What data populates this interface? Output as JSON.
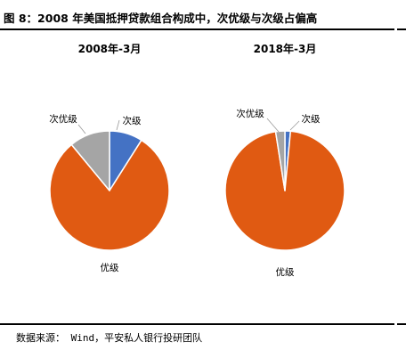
{
  "figure": {
    "title": "图 8：2008 年美国抵押贷款组合构成中，次优级与次级占偏高",
    "source": "数据来源： Wind，平安私人银行投研团队"
  },
  "colors": {
    "次级": "#4472C4",
    "次优级": "#A5A5A5",
    "优级": "#E05A12"
  },
  "chart_data": [
    {
      "type": "pie",
      "title": "2008年-3月",
      "categories": [
        "次级",
        "次优级",
        "优级"
      ],
      "values": [
        9,
        11,
        80
      ],
      "start": "12 o'clock, clockwise order: 次级, 优级, 次优级"
    },
    {
      "type": "pie",
      "title": "2018年-3月",
      "categories": [
        "次级",
        "次优级",
        "优级"
      ],
      "values": [
        1.5,
        2.5,
        96
      ],
      "start": "12 o'clock, clockwise order: 次级, 优级, 次优级"
    }
  ]
}
